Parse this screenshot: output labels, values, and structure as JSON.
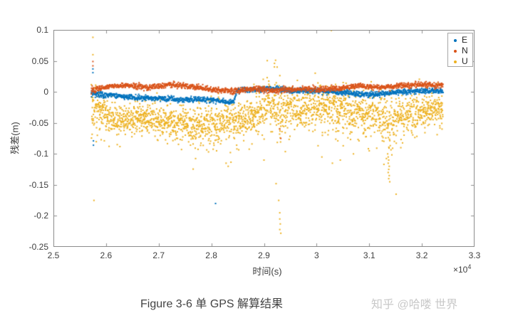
{
  "figure": {
    "caption": "Figure 3-6 单 GPS 解算结果",
    "watermark": "知乎 @哈喽 世界"
  },
  "chart_data": {
    "type": "scatter",
    "title": "",
    "xlabel": "时间(s)",
    "ylabel": "残差(m)",
    "x_exponent": {
      "base": "×10",
      "power": "4"
    },
    "xlim": [
      2.5,
      3.3
    ],
    "ylim": [
      -0.25,
      0.1
    ],
    "x_ticks": [
      {
        "value": 2.5,
        "label": "2.5"
      },
      {
        "value": 2.6,
        "label": "2.6"
      },
      {
        "value": 2.7,
        "label": "2.7"
      },
      {
        "value": 2.8,
        "label": "2.8"
      },
      {
        "value": 2.9,
        "label": "2.9"
      },
      {
        "value": 3.0,
        "label": "3"
      },
      {
        "value": 3.1,
        "label": "3.1"
      },
      {
        "value": 3.2,
        "label": "3.2"
      },
      {
        "value": 3.3,
        "label": "3.3"
      }
    ],
    "y_ticks": [
      {
        "value": 0.1,
        "label": "0.1"
      },
      {
        "value": 0.05,
        "label": "0.05"
      },
      {
        "value": 0,
        "label": "0"
      },
      {
        "value": -0.05,
        "label": "-0.05"
      },
      {
        "value": -0.1,
        "label": "-0.1"
      },
      {
        "value": -0.15,
        "label": "-0.15"
      },
      {
        "value": -0.2,
        "label": "-0.2"
      },
      {
        "value": -0.25,
        "label": "-0.25"
      }
    ],
    "grid": false,
    "box": true,
    "legend": {
      "position": "top-right",
      "entries": [
        {
          "label": "E",
          "color": "#0072BD"
        },
        {
          "label": "N",
          "color": "#D95319"
        },
        {
          "label": "U",
          "color": "#EDB120"
        }
      ]
    },
    "data_t_range": [
      2.572,
      3.24
    ],
    "series": [
      {
        "name": "E",
        "color": "#0072BD",
        "marker": "dot",
        "step": 0.00045,
        "noise_gain": 1.5,
        "trend": [
          [
            2.572,
            -0.002,
            0.014
          ],
          [
            2.58,
            -0.004,
            0.006
          ],
          [
            2.62,
            -0.006,
            0.005
          ],
          [
            2.66,
            -0.009,
            0.005
          ],
          [
            2.7,
            -0.011,
            0.005
          ],
          [
            2.74,
            -0.013,
            0.005
          ],
          [
            2.78,
            -0.012,
            0.005
          ],
          [
            2.82,
            -0.015,
            0.005
          ],
          [
            2.843,
            -0.017,
            0.005
          ],
          [
            2.848,
            0.002,
            0.005
          ],
          [
            2.88,
            0.004,
            0.005
          ],
          [
            2.92,
            0.005,
            0.006
          ],
          [
            2.96,
            0.001,
            0.005
          ],
          [
            3.0,
            0.002,
            0.005
          ],
          [
            3.05,
            -0.001,
            0.005
          ],
          [
            3.1,
            -0.005,
            0.005
          ],
          [
            3.14,
            -0.002,
            0.005
          ],
          [
            3.18,
            0.001,
            0.005
          ],
          [
            3.22,
            0.002,
            0.005
          ],
          [
            3.24,
            0.001,
            0.005
          ]
        ],
        "outliers": [
          [
            2.575,
            0.037
          ],
          [
            2.575,
            0.031
          ],
          [
            2.576,
            -0.079
          ],
          [
            2.576,
            -0.086
          ],
          [
            2.808,
            -0.18
          ]
        ]
      },
      {
        "name": "N",
        "color": "#D95319",
        "marker": "dot",
        "step": 0.00045,
        "noise_gain": 1.5,
        "trend": [
          [
            2.572,
            0.002,
            0.014
          ],
          [
            2.58,
            0.004,
            0.005
          ],
          [
            2.6,
            0.008,
            0.005
          ],
          [
            2.64,
            0.011,
            0.005
          ],
          [
            2.68,
            0.007,
            0.005
          ],
          [
            2.72,
            0.012,
            0.005
          ],
          [
            2.76,
            0.009,
            0.005
          ],
          [
            2.8,
            0.004,
            0.005
          ],
          [
            2.84,
            0.001,
            0.005
          ],
          [
            2.88,
            0.005,
            0.005
          ],
          [
            2.92,
            0.002,
            0.006
          ],
          [
            2.96,
            0.004,
            0.005
          ],
          [
            3.0,
            0.004,
            0.006
          ],
          [
            3.04,
            0.006,
            0.005
          ],
          [
            3.08,
            0.01,
            0.005
          ],
          [
            3.12,
            0.007,
            0.005
          ],
          [
            3.16,
            0.01,
            0.005
          ],
          [
            3.2,
            0.012,
            0.005
          ],
          [
            3.24,
            0.01,
            0.005
          ]
        ],
        "outliers": [
          [
            2.575,
            0.049
          ],
          [
            2.575,
            0.042
          ],
          [
            2.93,
            -0.06
          ],
          [
            2.932,
            -0.075
          ]
        ]
      },
      {
        "name": "U",
        "color": "#EDB120",
        "marker": "dot",
        "step": 0.00035,
        "noise_gain": 1.7,
        "trend": [
          [
            2.572,
            -0.02,
            0.045
          ],
          [
            2.585,
            -0.03,
            0.028
          ],
          [
            2.62,
            -0.045,
            0.022
          ],
          [
            2.66,
            -0.04,
            0.02
          ],
          [
            2.7,
            -0.046,
            0.024
          ],
          [
            2.74,
            -0.052,
            0.026
          ],
          [
            2.78,
            -0.056,
            0.028
          ],
          [
            2.81,
            -0.05,
            0.032
          ],
          [
            2.84,
            -0.046,
            0.028
          ],
          [
            2.88,
            -0.04,
            0.028
          ],
          [
            2.915,
            -0.015,
            0.04
          ],
          [
            2.93,
            -0.03,
            0.045
          ],
          [
            2.96,
            -0.03,
            0.028
          ],
          [
            3.0,
            -0.026,
            0.032
          ],
          [
            3.04,
            -0.03,
            0.032
          ],
          [
            3.08,
            -0.035,
            0.028
          ],
          [
            3.12,
            -0.04,
            0.035
          ],
          [
            3.14,
            -0.048,
            0.04
          ],
          [
            3.17,
            -0.035,
            0.028
          ],
          [
            3.21,
            -0.03,
            0.026
          ],
          [
            3.24,
            -0.028,
            0.024
          ]
        ],
        "outliers": [
          [
            2.575,
            0.088
          ],
          [
            2.575,
            0.06
          ],
          [
            2.577,
            -0.175
          ],
          [
            2.81,
            -0.095
          ],
          [
            2.828,
            -0.115
          ],
          [
            2.832,
            -0.12
          ],
          [
            2.9,
            -0.11
          ],
          [
            2.92,
            0.046
          ],
          [
            2.922,
            0.051
          ],
          [
            2.925,
            0.04
          ],
          [
            2.923,
            -0.148
          ],
          [
            2.928,
            -0.175
          ],
          [
            2.93,
            -0.195
          ],
          [
            2.93,
            -0.205
          ],
          [
            2.931,
            -0.213
          ],
          [
            2.93,
            -0.222
          ],
          [
            2.932,
            -0.228
          ],
          [
            3.028,
            0.099
          ],
          [
            3.01,
            -0.105
          ],
          [
            3.03,
            -0.115
          ],
          [
            3.045,
            -0.11
          ],
          [
            3.07,
            -0.1
          ],
          [
            3.1,
            -0.095
          ],
          [
            3.135,
            -0.1
          ],
          [
            3.136,
            -0.105
          ],
          [
            3.137,
            -0.11
          ],
          [
            3.136,
            -0.115
          ],
          [
            3.138,
            -0.12
          ],
          [
            3.137,
            -0.125
          ],
          [
            3.136,
            -0.13
          ],
          [
            3.138,
            -0.135
          ],
          [
            3.137,
            -0.14
          ],
          [
            3.139,
            -0.145
          ],
          [
            3.151,
            -0.165
          ],
          [
            3.16,
            -0.09
          ]
        ]
      }
    ]
  }
}
